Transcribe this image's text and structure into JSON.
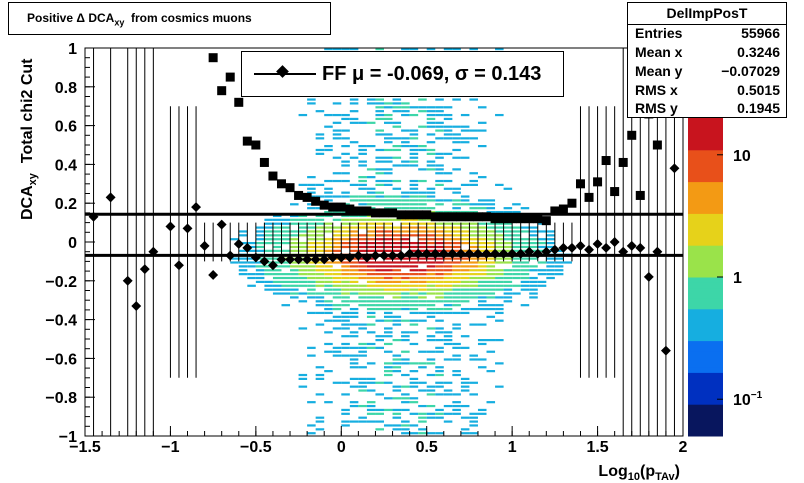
{
  "title": "Positive Δ DCA",
  "title_sub": "xy",
  "title_rest": "from cosmics muons",
  "stats": {
    "name": "DelImpPosT",
    "rows": [
      {
        "key": "Entries",
        "value": "55966"
      },
      {
        "key": "Mean x",
        "value": "0.3246"
      },
      {
        "key": "Mean y",
        "value": "−0.07029"
      },
      {
        "key": "RMS x",
        "value": "0.5015"
      },
      {
        "key": "RMS y",
        "value": "0.1945"
      }
    ]
  },
  "legend": {
    "label": "FF μ = -0.069, σ =   0.143"
  },
  "axes": {
    "xlabel_main": "Log",
    "xlabel_sub1": "10",
    "xlabel_mid": "(p",
    "xlabel_sub2": "TAv",
    "xlabel_end": ")",
    "ylabel_main": "DCA",
    "ylabel_sub": "xy",
    "ylabel_rest": "Total chi2 Cut"
  },
  "colors": {
    "marker": "#000000",
    "palette": [
      "#08165e",
      "#0030c0",
      "#0a6ff0",
      "#16aee0",
      "#3dd6a8",
      "#9ae34a",
      "#e6d21a",
      "#f39a14",
      "#e8501a",
      "#c8141e"
    ]
  },
  "chart_data": {
    "type": "heatmap",
    "xlim": [
      -1.5,
      2.0
    ],
    "ylim": [
      -1.0,
      1.0
    ],
    "x_ticks": [
      -1.5,
      -1,
      -0.5,
      0,
      0.5,
      1,
      1.5,
      2
    ],
    "x_tick_labels": [
      "−1.5",
      "−1",
      "−0.5",
      "0",
      "0.5",
      "1",
      "1.5",
      "2"
    ],
    "y_ticks": [
      -1,
      -0.8,
      -0.6,
      -0.4,
      -0.2,
      0,
      0.2,
      0.4,
      0.6,
      0.8,
      1
    ],
    "y_tick_labels": [
      "−1",
      "−0.8",
      "−0.6",
      "−0.4",
      "−0.2",
      "0",
      "0.2",
      "0.4",
      "0.6",
      "0.8",
      "1"
    ],
    "z_scale": "log",
    "z_ticks": [
      0.1,
      1,
      10
    ],
    "z_tick_labels": [
      "10−1",
      "1",
      "10"
    ],
    "mean_line": -0.069,
    "sigma_line": 0.143,
    "mean_points": {
      "x": [
        -1.45,
        -1.35,
        -1.25,
        -1.2,
        -1.15,
        -1.1,
        -1.0,
        -0.95,
        -0.9,
        -0.85,
        -0.8,
        -0.75,
        -0.7,
        -0.65,
        -0.6,
        -0.55,
        -0.5,
        -0.45,
        -0.4,
        -0.35,
        -0.3,
        -0.25,
        -0.2,
        -0.15,
        -0.1,
        -0.05,
        0.0,
        0.05,
        0.1,
        0.15,
        0.2,
        0.25,
        0.3,
        0.35,
        0.4,
        0.45,
        0.5,
        0.55,
        0.6,
        0.65,
        0.7,
        0.75,
        0.8,
        0.85,
        0.9,
        0.95,
        1.0,
        1.05,
        1.1,
        1.15,
        1.2,
        1.25,
        1.3,
        1.35,
        1.4,
        1.45,
        1.5,
        1.55,
        1.6,
        1.65,
        1.7,
        1.75,
        1.8,
        1.85,
        1.9,
        1.95
      ],
      "y": [
        0.13,
        0.23,
        -0.2,
        -0.33,
        -0.14,
        -0.05,
        0.08,
        -0.12,
        0.07,
        0.18,
        -0.02,
        -0.17,
        0.09,
        -0.07,
        -0.01,
        -0.03,
        -0.08,
        -0.1,
        -0.12,
        -0.09,
        -0.09,
        -0.09,
        -0.09,
        -0.09,
        -0.09,
        -0.08,
        -0.08,
        -0.08,
        -0.07,
        -0.08,
        -0.07,
        -0.07,
        -0.07,
        -0.07,
        -0.06,
        -0.06,
        -0.06,
        -0.06,
        -0.06,
        -0.06,
        -0.06,
        -0.06,
        -0.06,
        -0.06,
        -0.06,
        -0.06,
        -0.06,
        -0.06,
        -0.05,
        -0.06,
        -0.05,
        -0.04,
        -0.03,
        -0.03,
        -0.02,
        -0.04,
        -0.01,
        -0.03,
        0.0,
        -0.05,
        -0.02,
        -0.03,
        -0.18,
        -0.05,
        -0.56,
        0.38
      ]
    },
    "sigma_points": {
      "x": [
        -0.75,
        -0.7,
        -0.65,
        -0.6,
        -0.55,
        -0.5,
        -0.45,
        -0.4,
        -0.35,
        -0.3,
        -0.25,
        -0.2,
        -0.15,
        -0.1,
        -0.05,
        0.0,
        0.05,
        0.1,
        0.15,
        0.2,
        0.25,
        0.3,
        0.35,
        0.4,
        0.45,
        0.5,
        0.55,
        0.6,
        0.65,
        0.7,
        0.75,
        0.8,
        0.85,
        0.9,
        0.95,
        1.0,
        1.05,
        1.1,
        1.15,
        1.2,
        1.25,
        1.3,
        1.35,
        1.4,
        1.45,
        1.5,
        1.55,
        1.6,
        1.65,
        1.7,
        1.75,
        1.8,
        1.85,
        1.9
      ],
      "y": [
        0.95,
        0.78,
        0.85,
        0.72,
        0.52,
        0.5,
        0.41,
        0.34,
        0.3,
        0.28,
        0.24,
        0.23,
        0.21,
        0.19,
        0.18,
        0.18,
        0.17,
        0.16,
        0.16,
        0.15,
        0.15,
        0.15,
        0.14,
        0.14,
        0.14,
        0.14,
        0.13,
        0.13,
        0.13,
        0.13,
        0.13,
        0.13,
        0.13,
        0.12,
        0.12,
        0.12,
        0.12,
        0.12,
        0.12,
        0.11,
        0.16,
        0.17,
        0.2,
        0.3,
        0.23,
        0.31,
        0.42,
        0.26,
        0.41,
        0.55,
        0.24,
        0.66,
        0.5,
        0.91
      ]
    }
  }
}
